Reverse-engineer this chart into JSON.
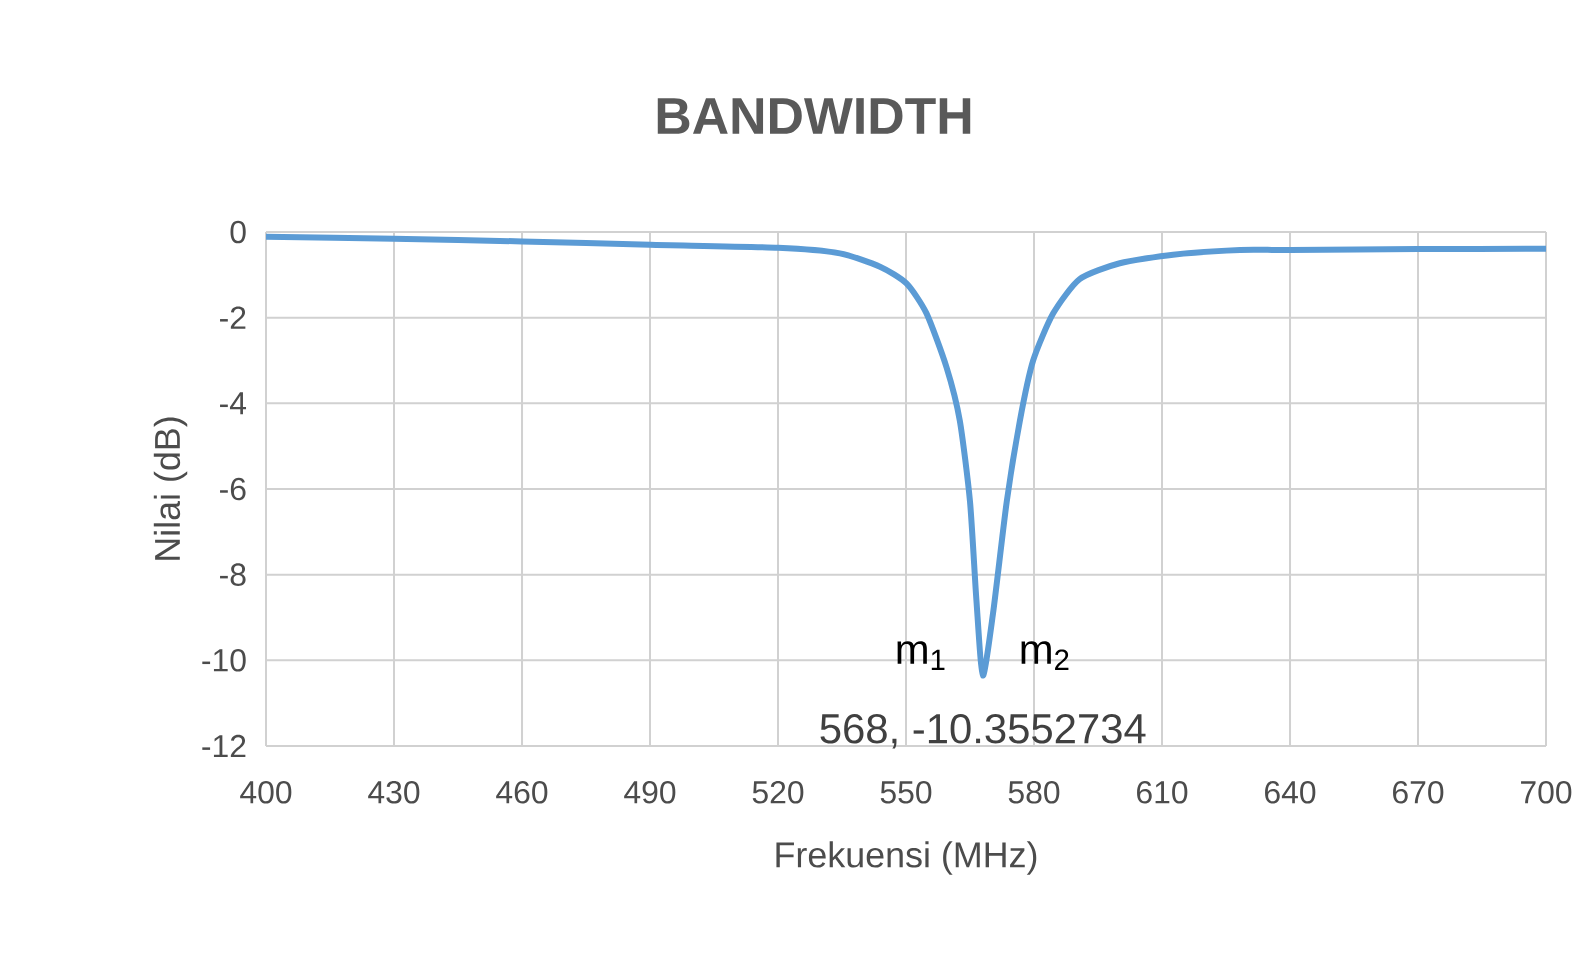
{
  "chart_data": {
    "type": "line",
    "title": "BANDWIDTH",
    "xlabel": "Frekuensi (MHz)",
    "ylabel": "Nilai (dB)",
    "x": [
      400,
      430,
      460,
      490,
      520,
      534.5,
      543.9,
      550.1,
      554.8,
      559.5,
      562.6,
      565,
      566.5,
      568,
      570.4,
      573.6,
      576.7,
      579.8,
      584.5,
      590.7,
      600.1,
      612.6,
      628.3,
      640,
      670,
      700
    ],
    "series": [
      {
        "color": "#5b9bd5",
        "values": [
          -0.11,
          -0.16,
          -0.22,
          -0.3,
          -0.37,
          -0.5,
          -0.81,
          -1.2,
          -1.9,
          -3.16,
          -4.4,
          -6.3,
          -8.6,
          -10.3552734,
          -8.9,
          -6.3,
          -4.4,
          -3.0,
          -1.9,
          -1.1,
          -0.73,
          -0.53,
          -0.42,
          -0.42,
          -0.4,
          -0.39
        ]
      }
    ],
    "xlim": [
      400,
      700
    ],
    "ylim": [
      -12,
      0
    ],
    "xticks": [
      400,
      430,
      460,
      490,
      520,
      550,
      580,
      610,
      640,
      670,
      700
    ],
    "yticks": [
      -12,
      -10,
      -8,
      -6,
      -4,
      -2,
      0
    ],
    "grid": true,
    "marker": "none",
    "line_style": "solid",
    "annotations": [
      "m$_{1}$",
      "m$_{2}$",
      {
        "text": "568, -10.3552734",
        "x": 568,
        "y": -10.3552734
      }
    ]
  }
}
